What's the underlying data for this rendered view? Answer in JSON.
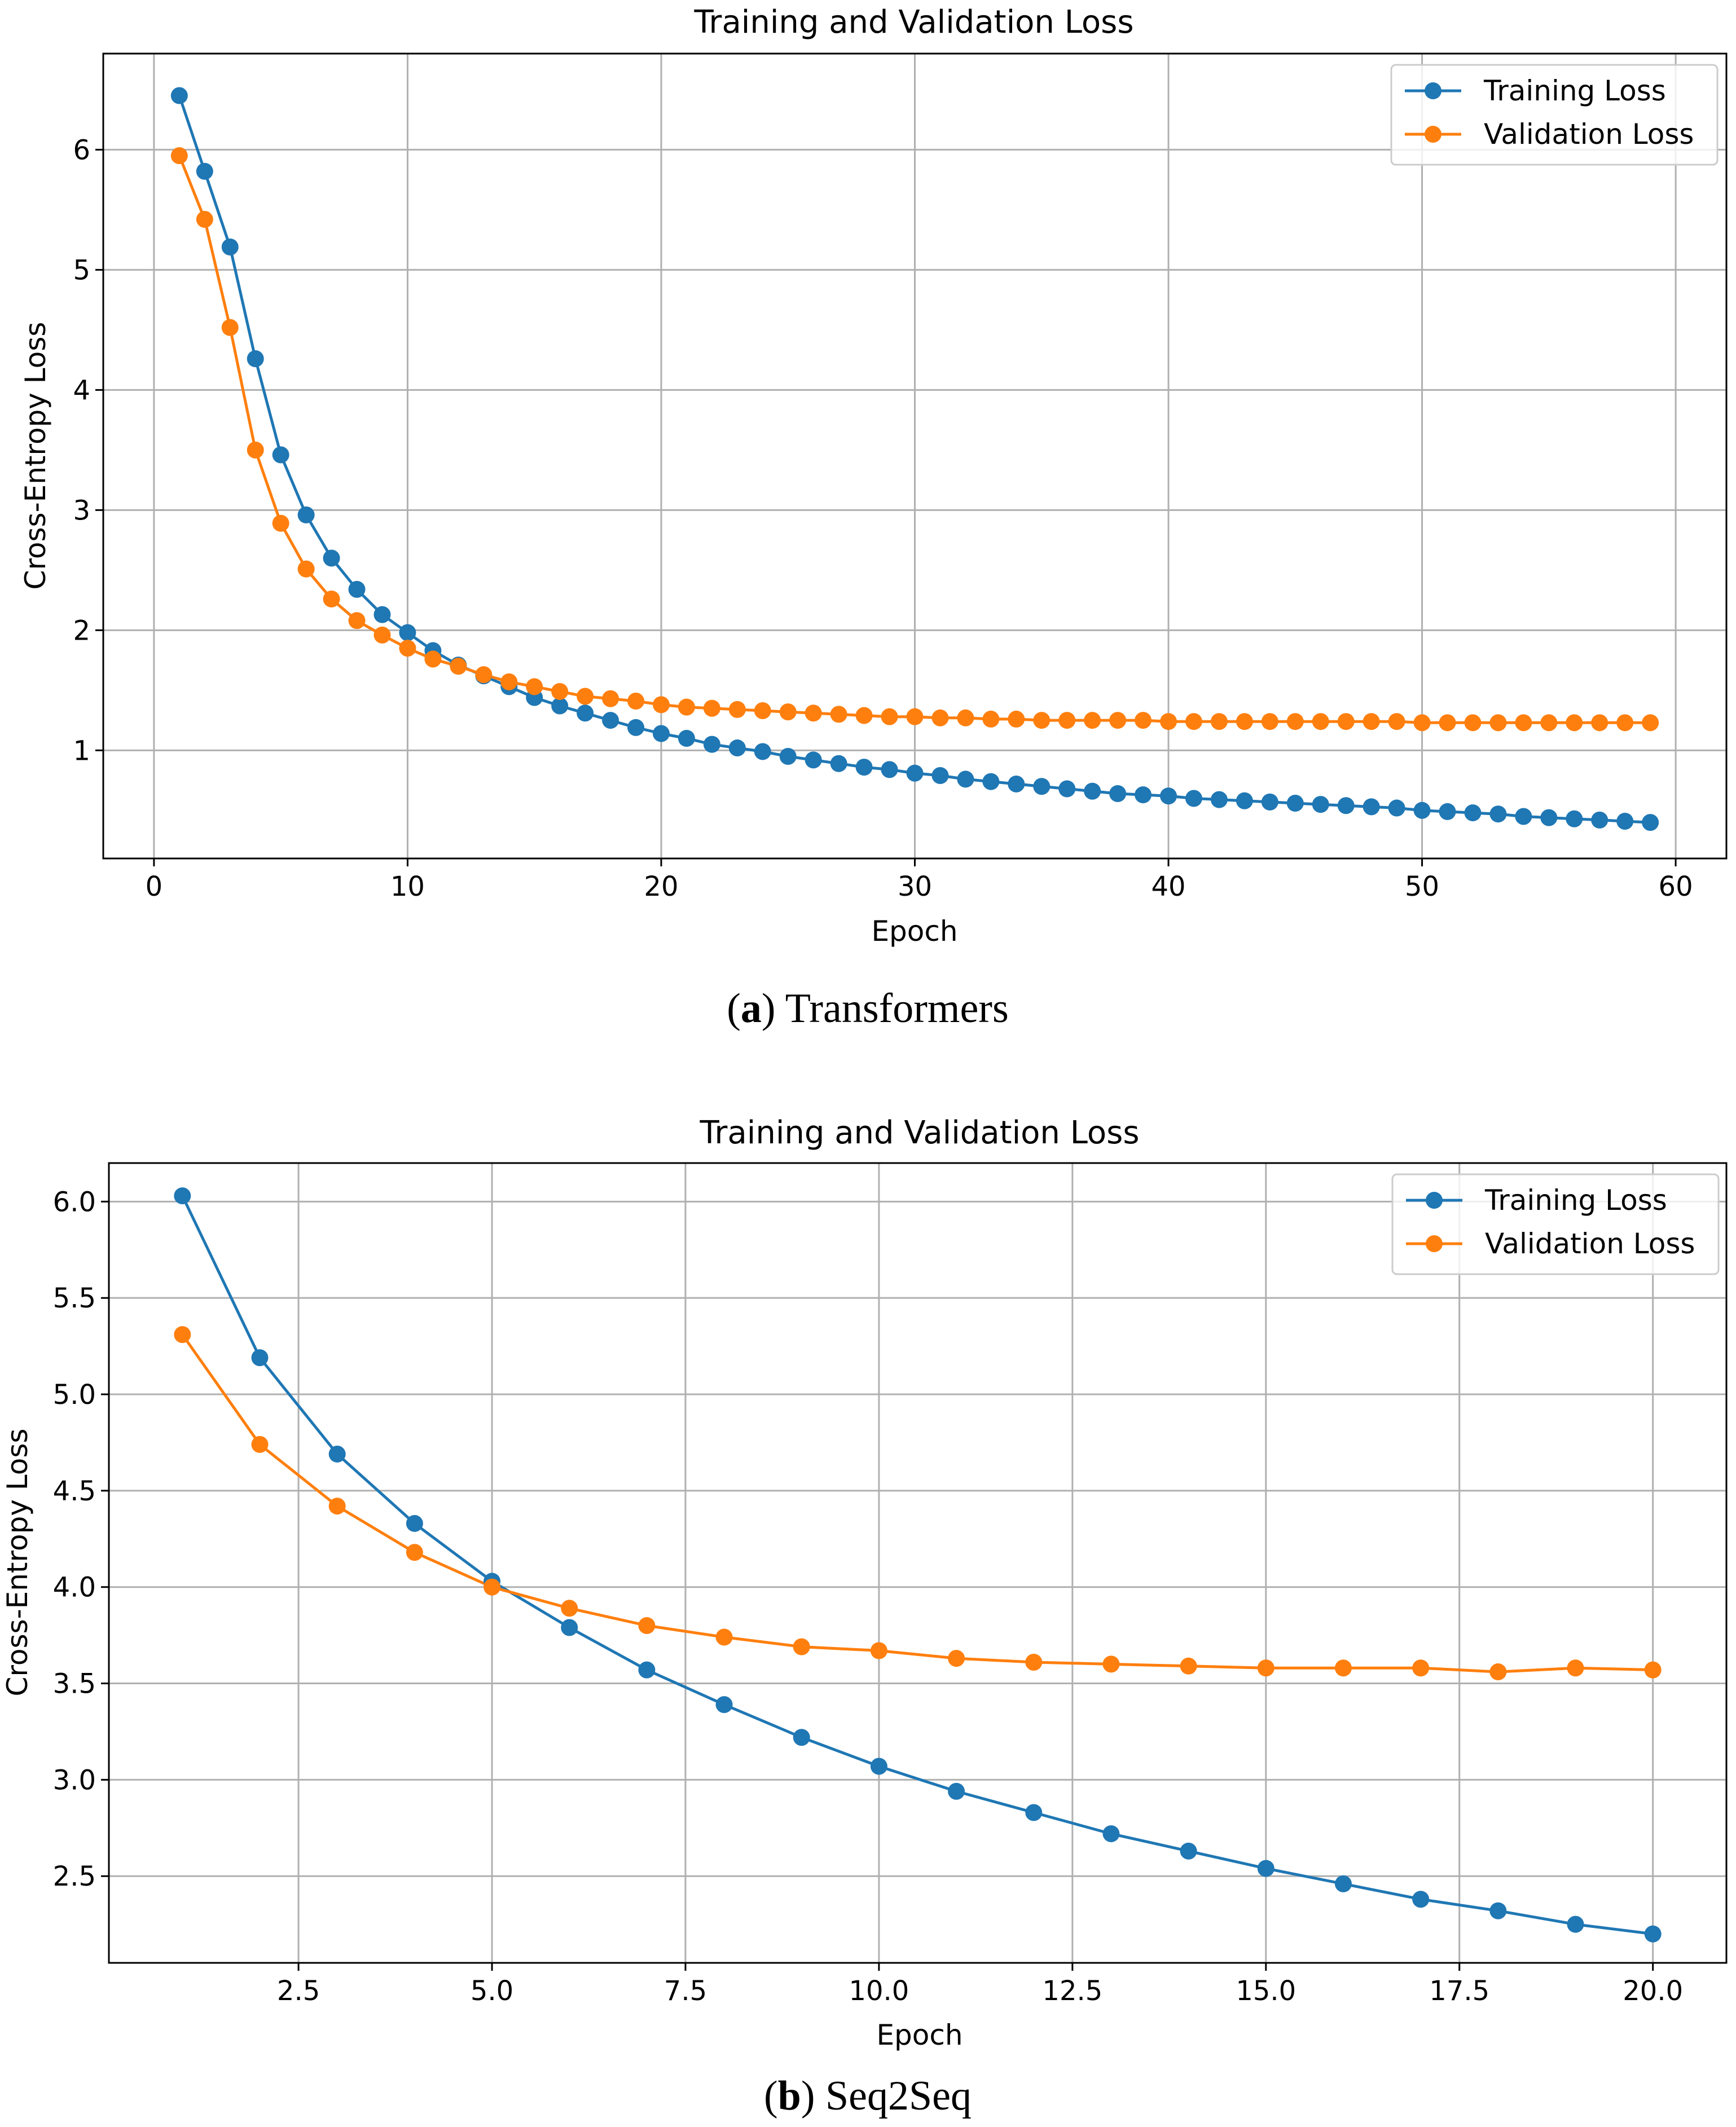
{
  "charts": [
    {
      "id": "a",
      "caption_letter": "a",
      "caption_text": " Transformers",
      "chart_data": {
        "type": "line",
        "title": "Training and Validation Loss",
        "xlabel": "Epoch",
        "ylabel": "Cross-Entropy Loss",
        "xlim": [
          -2,
          62
        ],
        "ylim": [
          0.1,
          6.8
        ],
        "xticks": [
          0,
          10,
          20,
          30,
          40,
          50,
          60
        ],
        "xtick_labels": [
          "0",
          "10",
          "20",
          "30",
          "40",
          "50",
          "60"
        ],
        "yticks": [
          1,
          2,
          3,
          4,
          5,
          6
        ],
        "ytick_labels": [
          "1",
          "2",
          "3",
          "4",
          "5",
          "6"
        ],
        "grid": true,
        "legend": "top-right",
        "x": [
          1,
          2,
          3,
          4,
          5,
          6,
          7,
          8,
          9,
          10,
          11,
          12,
          13,
          14,
          15,
          16,
          17,
          18,
          19,
          20,
          21,
          22,
          23,
          24,
          25,
          26,
          27,
          28,
          29,
          30,
          31,
          32,
          33,
          34,
          35,
          36,
          37,
          38,
          39,
          40,
          41,
          42,
          43,
          44,
          45,
          46,
          47,
          48,
          49,
          50,
          51,
          52,
          53,
          54,
          55,
          56,
          57,
          58,
          59
        ],
        "series": [
          {
            "name": "Training Loss",
            "color": "#1f77b4",
            "values": [
              6.45,
              5.82,
              5.19,
              4.26,
              3.46,
              2.96,
              2.6,
              2.34,
              2.13,
              1.98,
              1.83,
              1.71,
              1.62,
              1.53,
              1.44,
              1.37,
              1.31,
              1.25,
              1.19,
              1.14,
              1.1,
              1.05,
              1.02,
              0.99,
              0.95,
              0.92,
              0.89,
              0.86,
              0.84,
              0.81,
              0.79,
              0.76,
              0.74,
              0.72,
              0.7,
              0.68,
              0.66,
              0.64,
              0.63,
              0.62,
              0.6,
              0.59,
              0.58,
              0.57,
              0.56,
              0.55,
              0.54,
              0.53,
              0.52,
              0.5,
              0.49,
              0.48,
              0.47,
              0.45,
              0.44,
              0.43,
              0.42,
              0.41,
              0.4
            ]
          },
          {
            "name": "Validation Loss",
            "color": "#ff7f0e",
            "values": [
              5.95,
              5.42,
              4.52,
              3.5,
              2.89,
              2.51,
              2.26,
              2.08,
              1.96,
              1.85,
              1.76,
              1.7,
              1.63,
              1.57,
              1.53,
              1.49,
              1.45,
              1.43,
              1.41,
              1.38,
              1.36,
              1.35,
              1.34,
              1.33,
              1.32,
              1.31,
              1.3,
              1.29,
              1.28,
              1.28,
              1.27,
              1.27,
              1.26,
              1.26,
              1.25,
              1.25,
              1.25,
              1.25,
              1.25,
              1.24,
              1.24,
              1.24,
              1.24,
              1.24,
              1.24,
              1.24,
              1.24,
              1.24,
              1.24,
              1.23,
              1.23,
              1.23,
              1.23,
              1.23,
              1.23,
              1.23,
              1.23,
              1.23,
              1.23
            ]
          }
        ]
      }
    },
    {
      "id": "b",
      "caption_letter": "b",
      "caption_text": " Seq2Seq",
      "chart_data": {
        "type": "line",
        "title": "Training and Validation Loss",
        "xlabel": "Epoch",
        "ylabel": "Cross-Entropy Loss",
        "xlim": [
          0.05,
          20.95
        ],
        "ylim": [
          2.05,
          6.2
        ],
        "xticks": [
          2.5,
          5.0,
          7.5,
          10.0,
          12.5,
          15.0,
          17.5,
          20.0
        ],
        "xtick_labels": [
          "2.5",
          "5.0",
          "7.5",
          "10.0",
          "12.5",
          "15.0",
          "17.5",
          "20.0"
        ],
        "yticks": [
          2.5,
          3.0,
          3.5,
          4.0,
          4.5,
          5.0,
          5.5,
          6.0
        ],
        "ytick_labels": [
          "2.5",
          "3.0",
          "3.5",
          "4.0",
          "4.5",
          "5.0",
          "5.5",
          "6.0"
        ],
        "grid": true,
        "legend": "top-right",
        "x": [
          1,
          2,
          3,
          4,
          5,
          6,
          7,
          8,
          9,
          10,
          11,
          12,
          13,
          14,
          15,
          16,
          17,
          18,
          19,
          20
        ],
        "series": [
          {
            "name": "Training Loss",
            "color": "#1f77b4",
            "values": [
              6.03,
              5.19,
              4.69,
              4.33,
              4.03,
              3.79,
              3.57,
              3.39,
              3.22,
              3.07,
              2.94,
              2.83,
              2.72,
              2.63,
              2.54,
              2.46,
              2.38,
              2.32,
              2.25,
              2.2
            ]
          },
          {
            "name": "Validation Loss",
            "color": "#ff7f0e",
            "values": [
              5.31,
              4.74,
              4.42,
              4.18,
              4.0,
              3.89,
              3.8,
              3.74,
              3.69,
              3.67,
              3.63,
              3.61,
              3.6,
              3.59,
              3.58,
              3.58,
              3.58,
              3.56,
              3.58,
              3.57
            ]
          }
        ]
      }
    }
  ]
}
